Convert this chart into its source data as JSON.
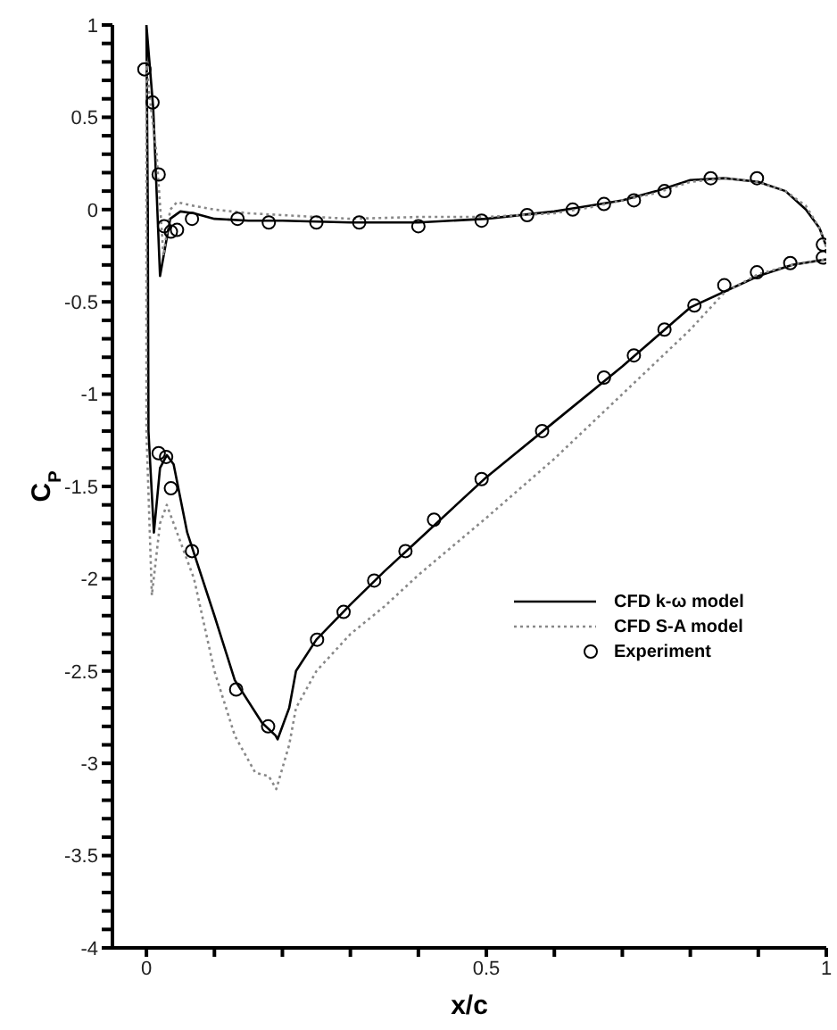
{
  "chart_data": {
    "type": "line",
    "xlabel": "x/c",
    "ylabel": "C$_{P}$",
    "xlim": [
      -0.05,
      1.0
    ],
    "ylim": [
      -4,
      1
    ],
    "xticks": [
      0,
      {
        "value": 0.1,
        "label": null
      },
      {
        "value": 0.2,
        "label": null
      },
      {
        "value": 0.3,
        "label": null
      },
      {
        "value": 0.4,
        "label": null
      },
      0.5,
      {
        "value": 0.6,
        "label": null
      },
      {
        "value": 0.7,
        "label": null
      },
      {
        "value": 0.8,
        "label": null
      },
      {
        "value": 0.9,
        "label": null
      },
      1
    ],
    "yticks": [
      -4,
      {
        "value": -3.9,
        "label": null
      },
      {
        "value": -3.8,
        "label": null
      },
      {
        "value": -3.7,
        "label": null
      },
      {
        "value": -3.6,
        "label": null
      },
      -3.5,
      {
        "value": -3.4,
        "label": null
      },
      {
        "value": -3.3,
        "label": null
      },
      {
        "value": -3.2,
        "label": null
      },
      {
        "value": -3.1,
        "label": null
      },
      -3,
      {
        "value": -2.9,
        "label": null
      },
      {
        "value": -2.8,
        "label": null
      },
      {
        "value": -2.7,
        "label": null
      },
      {
        "value": -2.6,
        "label": null
      },
      -2.5,
      {
        "value": -2.4,
        "label": null
      },
      {
        "value": -2.3,
        "label": null
      },
      {
        "value": -2.2,
        "label": null
      },
      {
        "value": -2.1,
        "label": null
      },
      -2,
      {
        "value": -1.9,
        "label": null
      },
      {
        "value": -1.8,
        "label": null
      },
      {
        "value": -1.7,
        "label": null
      },
      {
        "value": -1.6,
        "label": null
      },
      -1.5,
      {
        "value": -1.4,
        "label": null
      },
      {
        "value": -1.3,
        "label": null
      },
      {
        "value": -1.2,
        "label": null
      },
      {
        "value": -1.1,
        "label": null
      },
      -1,
      {
        "value": -0.9,
        "label": null
      },
      {
        "value": -0.8,
        "label": null
      },
      {
        "value": -0.7,
        "label": null
      },
      {
        "value": -0.6,
        "label": null
      },
      -0.5,
      {
        "value": -0.4,
        "label": null
      },
      {
        "value": -0.3,
        "label": null
      },
      {
        "value": -0.2,
        "label": null
      },
      {
        "value": -0.1,
        "label": null
      },
      0,
      {
        "value": 0.1,
        "label": null
      },
      {
        "value": 0.2,
        "label": null
      },
      {
        "value": 0.3,
        "label": null
      },
      {
        "value": 0.4,
        "label": null
      },
      0.5,
      {
        "value": 0.6,
        "label": null
      },
      {
        "value": 0.7,
        "label": null
      },
      {
        "value": 0.8,
        "label": null
      },
      {
        "value": 0.9,
        "label": null
      },
      1
    ],
    "grid": false,
    "legend": "right",
    "series": [
      {
        "name": "CFD k-ω model",
        "type": "line",
        "color": "#000000",
        "line_style": "solid",
        "marker": "none",
        "x": [
          1.0,
          0.99,
          0.97,
          0.94,
          0.9,
          0.85,
          0.8,
          0.75,
          0.7,
          0.65,
          0.6,
          0.5,
          0.4,
          0.3,
          0.2,
          0.15,
          0.1,
          0.07,
          0.05,
          0.035,
          0.02,
          0.01,
          0.0,
          0.002,
          0.003,
          0.011,
          0.02,
          0.03,
          0.04,
          0.06,
          0.1,
          0.13,
          0.17,
          0.19,
          0.193,
          0.21,
          0.22,
          0.25,
          0.3,
          0.35,
          0.4,
          0.5,
          0.6,
          0.7,
          0.8,
          0.9,
          0.95,
          1.0
        ],
        "values": [
          -0.2,
          -0.1,
          0.0,
          0.1,
          0.15,
          0.17,
          0.16,
          0.1,
          0.05,
          0.02,
          -0.01,
          -0.05,
          -0.07,
          -0.07,
          -0.06,
          -0.06,
          -0.05,
          -0.02,
          -0.01,
          -0.05,
          -0.36,
          0.55,
          1.0,
          0.0,
          -1.2,
          -1.75,
          -1.4,
          -1.33,
          -1.38,
          -1.75,
          -2.2,
          -2.55,
          -2.78,
          -2.85,
          -2.87,
          -2.7,
          -2.5,
          -2.33,
          -2.14,
          -1.96,
          -1.79,
          -1.45,
          -1.15,
          -0.85,
          -0.53,
          -0.36,
          -0.3,
          -0.27
        ]
      },
      {
        "name": "CFD S-A model",
        "type": "line",
        "color": "#888888",
        "line_style": "dotted",
        "marker": "none",
        "x": [
          1.0,
          0.99,
          0.97,
          0.94,
          0.9,
          0.85,
          0.8,
          0.75,
          0.7,
          0.65,
          0.6,
          0.5,
          0.4,
          0.3,
          0.2,
          0.15,
          0.1,
          0.07,
          0.045,
          0.035,
          0.025,
          0.015,
          0.005,
          0.0,
          0.0,
          0.008,
          0.02,
          0.03,
          0.045,
          0.07,
          0.1,
          0.13,
          0.16,
          0.18,
          0.191,
          0.21,
          0.22,
          0.25,
          0.3,
          0.35,
          0.4,
          0.5,
          0.6,
          0.7,
          0.8,
          0.85,
          0.9,
          0.95,
          1.0
        ],
        "values": [
          -0.2,
          -0.1,
          0.02,
          0.1,
          0.15,
          0.17,
          0.15,
          0.09,
          0.05,
          0.01,
          -0.02,
          -0.04,
          -0.04,
          -0.05,
          -0.03,
          -0.02,
          0.0,
          0.02,
          0.04,
          0.0,
          -0.25,
          0.3,
          0.6,
          0.8,
          -1.2,
          -2.09,
          -1.7,
          -1.6,
          -1.75,
          -2.0,
          -2.5,
          -2.85,
          -3.05,
          -3.07,
          -3.14,
          -2.9,
          -2.7,
          -2.5,
          -2.3,
          -2.15,
          -1.98,
          -1.67,
          -1.35,
          -1.0,
          -0.65,
          -0.45,
          -0.35,
          -0.3,
          -0.27
        ]
      },
      {
        "name": "Experiment",
        "type": "scatter",
        "color": "#000000",
        "marker": "circle",
        "x": [
          -0.003,
          0.009,
          0.018,
          0.026,
          0.036,
          0.045,
          0.067,
          0.134,
          0.18,
          0.25,
          0.313,
          0.4,
          0.493,
          0.56,
          0.627,
          0.673,
          0.717,
          0.762,
          0.83,
          0.898,
          0.995,
          0.995,
          0.947,
          0.898,
          0.85,
          0.806,
          0.762,
          0.717,
          0.673,
          0.582,
          0.493,
          0.423,
          0.381,
          0.335,
          0.29,
          0.251,
          0.179,
          0.132,
          0.067,
          0.036,
          0.029,
          0.018
        ],
        "values": [
          0.76,
          0.58,
          0.19,
          -0.09,
          -0.12,
          -0.11,
          -0.05,
          -0.05,
          -0.07,
          -0.07,
          -0.07,
          -0.09,
          -0.06,
          -0.03,
          0.0,
          0.03,
          0.05,
          0.1,
          0.17,
          0.17,
          -0.19,
          -0.26,
          -0.29,
          -0.34,
          -0.41,
          -0.52,
          -0.65,
          -0.79,
          -0.91,
          -1.2,
          -1.46,
          -1.68,
          -1.85,
          -2.01,
          -2.18,
          -2.33,
          -2.8,
          -2.6,
          -1.85,
          -1.51,
          -1.34,
          -1.32
        ]
      }
    ]
  }
}
